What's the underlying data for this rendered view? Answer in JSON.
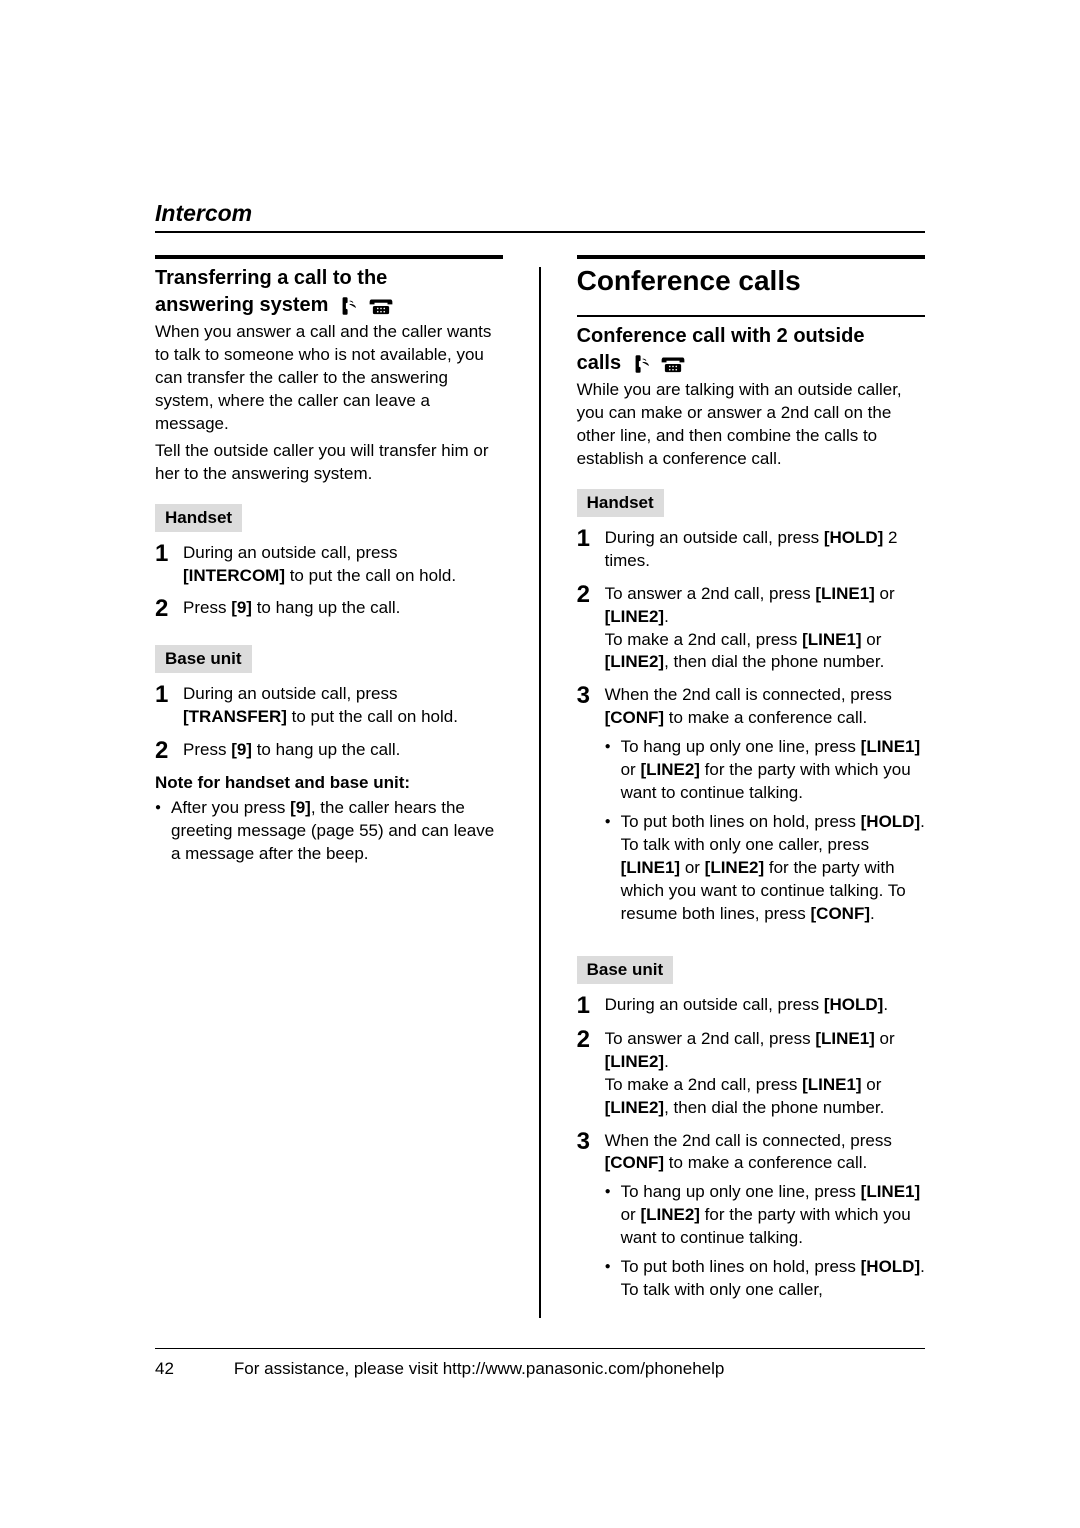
{
  "section": "Intercom",
  "left": {
    "subtitle_line1": "Transferring a call to the",
    "subtitle_line2": "answering system",
    "intro1": "When you answer a call and the caller wants to talk to someone who is not available, you can transfer the caller to the answering system, where the caller can leave a message.",
    "intro2": "Tell the outside caller you will transfer him or her to the answering system.",
    "handset_label": "Handset",
    "handset_steps": [
      {
        "n": "1",
        "html": "During an outside call, press <span class=\"kbd\">[INTERCOM]</span> to put the call on hold."
      },
      {
        "n": "2",
        "html": "Press <span class=\"kbd\">[9]</span> to hang up the call."
      }
    ],
    "base_label": "Base unit",
    "base_steps": [
      {
        "n": "1",
        "html": "During an outside call, press <span class=\"kbd\">[TRANSFER]</span> to put the call on hold."
      },
      {
        "n": "2",
        "html": "Press <span class=\"kbd\">[9]</span> to hang up the call."
      }
    ],
    "note_heading": "Note for handset and base unit:",
    "note_bullet_html": "After you press <span class=\"kbd\">[9]</span>, the caller hears the greeting message (page 55) and can leave a message after the beep."
  },
  "right": {
    "title": "Conference calls",
    "subtitle_line1": "Conference call with 2 outside",
    "subtitle_line2": "calls",
    "intro": "While you are talking with an outside caller, you can make or answer a 2nd call on the other line, and then combine the calls to establish a conference call.",
    "handset_label": "Handset",
    "handset_steps": [
      {
        "n": "1",
        "html": "During an outside call, press <span class=\"kbd\">[HOLD]</span> 2 times."
      },
      {
        "n": "2",
        "html": "To answer a 2nd call, press <span class=\"kbd\">[LINE1]</span> or <span class=\"kbd\">[LINE2]</span>.<br>To make a 2nd call, press <span class=\"kbd\">[LINE1]</span> or <span class=\"kbd\">[LINE2]</span>, then dial the phone number."
      },
      {
        "n": "3",
        "html": "When the 2nd call is connected, press <span class=\"kbd\">[CONF]</span> to make a conference call.",
        "bullets": [
          "To hang up only one line, press <span class=\"kbd\">[LINE1]</span> or <span class=\"kbd\">[LINE2]</span> for the party with which you want to continue talking.",
          "To put both lines on hold, press <span class=\"kbd\">[HOLD]</span>. To talk with only one caller, press <span class=\"kbd\">[LINE1]</span> or <span class=\"kbd\">[LINE2]</span> for the party with which you want to continue talking. To resume both lines, press <span class=\"kbd\">[CONF]</span>."
        ]
      }
    ],
    "base_label": "Base unit",
    "base_steps": [
      {
        "n": "1",
        "html": "During an outside call, press <span class=\"kbd\">[HOLD]</span>."
      },
      {
        "n": "2",
        "html": "To answer a 2nd call, press <span class=\"kbd\">[LINE1]</span> or <span class=\"kbd\">[LINE2]</span>.<br>To make a 2nd call, press <span class=\"kbd\">[LINE1]</span> or <span class=\"kbd\">[LINE2]</span>, then dial the phone number."
      },
      {
        "n": "3",
        "html": "When the 2nd call is connected, press <span class=\"kbd\">[CONF]</span> to make a conference call.",
        "bullets": [
          "To hang up only one line, press <span class=\"kbd\">[LINE1]</span> or <span class=\"kbd\">[LINE2]</span> for the party with which you want to continue talking.",
          "To put both lines on hold, press <span class=\"kbd\">[HOLD]</span>. To talk with only one caller,"
        ]
      }
    ]
  },
  "icons": {
    "handset_svg": "<svg width=\"20\" height=\"20\" viewBox=\"0 0 24 24\"><path d=\"M7 2 L10 2 Q11 2 11 3 L11 7 Q11 8 10 8 L9 8 L9 16 L10 16 Q11 16 11 17 L11 21 Q11 22 10 22 L7 22 Q6 22 6 21 L6 3 Q6 2 7 2 Z M14 6 Q17 6 18 8 M14 10 Q20 10 21 14\" fill=\"#000\" stroke=\"#000\" stroke-width=\"1\"/></svg>",
    "base_svg": "<svg width=\"26\" height=\"20\" viewBox=\"0 0 32 24\"><path d=\"M4 4 Q2 4 2 8 L2 10 L8 10 L8 8 L24 8 L24 10 L30 10 L30 8 Q30 4 28 4 Z\" fill=\"#000\"/><rect x=\"6\" y=\"12\" width=\"20\" height=\"10\" rx=\"2\" fill=\"#000\"/><circle cx=\"12\" cy=\"15\" r=\"1\" fill=\"#fff\"/><circle cx=\"16\" cy=\"15\" r=\"1\" fill=\"#fff\"/><circle cx=\"20\" cy=\"15\" r=\"1\" fill=\"#fff\"/><circle cx=\"12\" cy=\"19\" r=\"1\" fill=\"#fff\"/><circle cx=\"16\" cy=\"19\" r=\"1\" fill=\"#fff\"/><circle cx=\"20\" cy=\"19\" r=\"1\" fill=\"#fff\"/></svg>"
  },
  "footer": {
    "page": "42",
    "text": "For assistance, please visit http://www.panasonic.com/phonehelp"
  }
}
